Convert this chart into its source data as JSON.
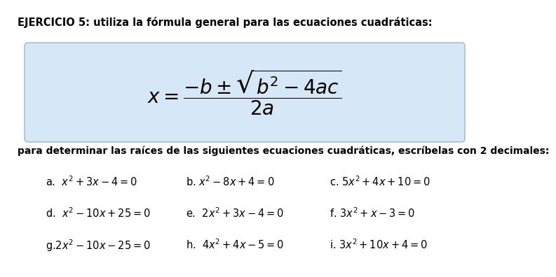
{
  "title": "EJERCICIO 5: utiliza la fórmula general para las ecuaciones cuadráticas:",
  "formula": "$x = \\dfrac{-b \\pm \\sqrt{b^2 - 4ac}}{2a}$",
  "subtitle": "para determinar las raíces de las siguientes ecuaciones cuadráticas, escríbelas con 2 decimales:",
  "equations": [
    [
      "a.  $x^2 + 3x - 4 = 0$",
      "b. $x^2 - 8x + 4 = 0$",
      "c. $5x^2 + 4x + 10 = 0$"
    ],
    [
      "d.  $x^2 - 10x + 25 = 0$",
      "e.  $2x^2 + 3x - 4 = 0$",
      "f. $3x^2 + x - 3 = 0$"
    ],
    [
      "g.$2x^2 - 10x - 25 = 0$",
      "h.  $4x^2 + 4x - 5 = 0$",
      "i. $3x^2 + 10x + 4 = 0$"
    ]
  ],
  "bg_color": "#ffffff",
  "box_bg_color": "#d6e8f7",
  "box_edge_color": "#9ab8d4",
  "title_fontsize": 10.5,
  "formula_fontsize": 20,
  "subtitle_fontsize": 10,
  "eq_fontsize": 10.5
}
